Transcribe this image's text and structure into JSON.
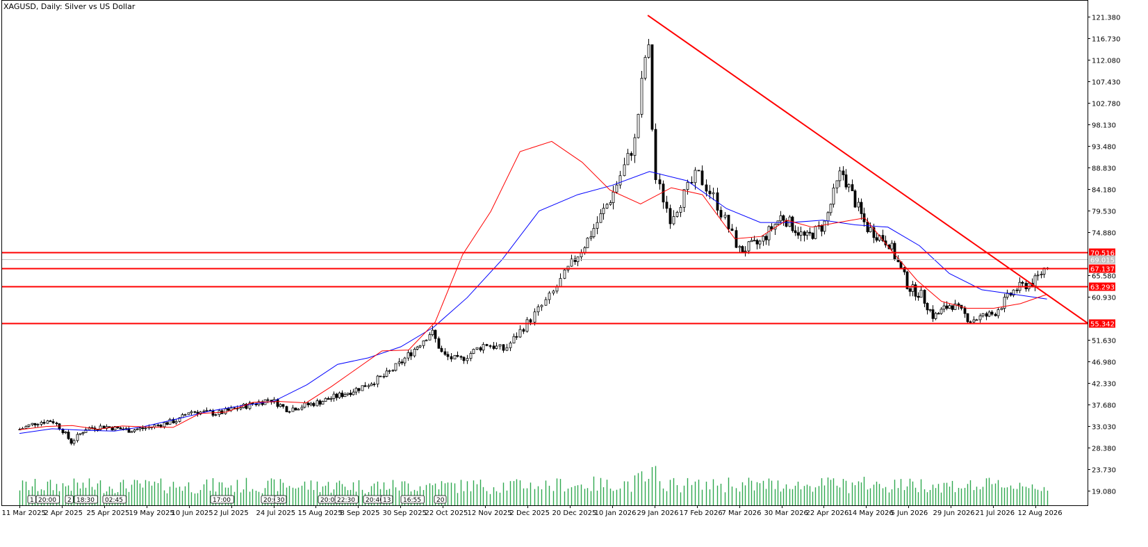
{
  "chart_data": {
    "type": "candlestick",
    "title": "XAGUSD, Daily:  Silver vs US Dollar",
    "ylim": [
      16.0,
      125.0
    ],
    "y_ticks": [
      "121.380",
      "116.730",
      "112.080",
      "107.430",
      "102.780",
      "98.130",
      "93.480",
      "88.830",
      "84.180",
      "79.530",
      "74.880",
      "65.580",
      "60.930",
      "51.630",
      "46.980",
      "42.330",
      "37.680",
      "33.030",
      "28.380",
      "23.730",
      "19.080"
    ],
    "x_ticks": [
      "11 Mar 2025",
      "2 Apr 2025",
      "25 Apr 2025",
      "19 May 2025",
      "10 Jun 2025",
      "2 Jul 2025",
      "24 Jul 2025",
      "15 Aug 2025",
      "8 Sep 2025",
      "30 Sep 2025",
      "22 Oct 2025",
      "12 Nov 2025",
      "2 Dec 2025",
      "20 Dec 2025",
      "10 Jan 2026",
      "29 Jan 2026",
      "17 Feb 2026",
      "7 Mar 2026",
      "30 Mar 2026",
      "22 Apr 2026",
      "14 May 2026",
      "5 Jun 2026",
      "29 Jun 2026",
      "21 Jul 2026",
      "12 Aug 2026"
    ],
    "price_path": [
      {
        "date": "11 Mar 2025",
        "close": 32.4
      },
      {
        "date": "20 Mar 2025",
        "close": 33.9
      },
      {
        "date": "28 Mar 2025",
        "close": 34.3
      },
      {
        "date": "2 Apr 2025",
        "close": 32.3
      },
      {
        "date": "7 Apr 2025",
        "close": 29.6
      },
      {
        "date": "15 Apr 2025",
        "close": 32.6
      },
      {
        "date": "25 Apr 2025",
        "close": 33.0
      },
      {
        "date": "9 May 2025",
        "close": 32.2
      },
      {
        "date": "19 May 2025",
        "close": 32.7
      },
      {
        "date": "5 Jun 2025",
        "close": 34.5
      },
      {
        "date": "10 Jun 2025",
        "close": 36.3
      },
      {
        "date": "25 Jun 2025",
        "close": 35.8
      },
      {
        "date": "10 Jul 2025",
        "close": 37.5
      },
      {
        "date": "22 Jul 2025",
        "close": 38.9
      },
      {
        "date": "31 Jul 2025",
        "close": 36.7
      },
      {
        "date": "15 Aug 2025",
        "close": 38.1
      },
      {
        "date": "29 Aug 2025",
        "close": 39.8
      },
      {
        "date": "8 Sep 2025",
        "close": 41.2
      },
      {
        "date": "22 Sep 2025",
        "close": 44.0
      },
      {
        "date": "30 Sep 2025",
        "close": 46.7
      },
      {
        "date": "16 Oct 2025",
        "close": 53.6
      },
      {
        "date": "22 Oct 2025",
        "close": 48.3
      },
      {
        "date": "30 Oct 2025",
        "close": 47.2
      },
      {
        "date": "12 Nov 2025",
        "close": 50.9
      },
      {
        "date": "21 Nov 2025",
        "close": 49.5
      },
      {
        "date": "2 Dec 2025",
        "close": 55.5
      },
      {
        "date": "12 Dec 2025",
        "close": 61.3
      },
      {
        "date": "20 Dec 2025",
        "close": 67.5
      },
      {
        "date": "29 Dec 2025",
        "close": 73.5
      },
      {
        "date": "10 Jan 2026",
        "close": 83.0
      },
      {
        "date": "20 Jan 2026",
        "close": 94.5
      },
      {
        "date": "26 Jan 2026",
        "close": 117.5
      },
      {
        "date": "29 Jan 2026",
        "close": 87.0
      },
      {
        "date": "5 Feb 2026",
        "close": 78.0
      },
      {
        "date": "17 Feb 2026",
        "close": 87.5
      },
      {
        "date": "24 Feb 2026",
        "close": 82.5
      },
      {
        "date": "7 Mar 2026",
        "close": 71.0
      },
      {
        "date": "18 Mar 2026",
        "close": 72.5
      },
      {
        "date": "30 Mar 2026",
        "close": 78.5
      },
      {
        "date": "12 Apr 2026",
        "close": 73.5
      },
      {
        "date": "22 Apr 2026",
        "close": 76.5
      },
      {
        "date": "1 May 2026",
        "close": 88.2
      },
      {
        "date": "14 May 2026",
        "close": 76.0
      },
      {
        "date": "26 May 2026",
        "close": 72.5
      },
      {
        "date": "5 Jun 2026",
        "close": 63.0
      },
      {
        "date": "12 Jun 2026",
        "close": 61.5
      },
      {
        "date": "19 Jun 2026",
        "close": 56.6
      },
      {
        "date": "29 Jun 2026",
        "close": 59.5
      },
      {
        "date": "9 Jul 2026",
        "close": 56.0
      },
      {
        "date": "21 Jul 2026",
        "close": 57.3
      },
      {
        "date": "1 Aug 2026",
        "close": 62.5
      },
      {
        "date": "12 Aug 2026",
        "close": 64.5
      },
      {
        "date": "18 Aug 2026",
        "close": 68.0
      }
    ],
    "ma_red": [
      32.3,
      33.0,
      33.2,
      32.4,
      33.1,
      32.9,
      32.8,
      35.8,
      36.1,
      38.2,
      38.4,
      38.1,
      41.6,
      45.3,
      49.3,
      49.5,
      55.5,
      70.1,
      79.4,
      92.3,
      94.5,
      90.0,
      84.0,
      81.0,
      84.5,
      83.0,
      73.5,
      74.0,
      77.5,
      76.0,
      77.0,
      78.0,
      71.0,
      64.5,
      60.0,
      58.5,
      58.5,
      59.5,
      61.5
    ],
    "ma_blue": [
      31.5,
      32.5,
      32.2,
      32.0,
      33.0,
      34.6,
      36.3,
      37.5,
      38.5,
      42.0,
      46.4,
      47.8,
      50.2,
      54.4,
      60.8,
      69.0,
      79.5,
      83.0,
      85.0,
      88.0,
      86.0,
      80.0,
      77.0,
      77.0,
      77.5,
      76.5,
      76.0,
      72.0,
      66.0,
      62.5,
      61.5,
      60.5
    ],
    "horizontal_levels": [
      "70.516",
      "67.137",
      "63.293",
      "55.342"
    ],
    "current_price": "69.015",
    "trendline": {
      "from_date": "26 Jan 2026",
      "from_price": 121.7,
      "to_date": "end",
      "to_price": 55.3
    },
    "volume": "green histogram along bottom of chart",
    "event_markers": [
      "1",
      "20:00",
      "2",
      "18:30",
      "02:45",
      "17:00",
      "20:00",
      "30",
      "20:00",
      "22:30",
      "20:40",
      "13",
      "16:55",
      "20"
    ],
    "colors": {
      "line_color": "#ff0000",
      "ma_red": "#ff0000",
      "ma_blue": "#0000ff",
      "candles": "#000000",
      "volume": "#2fa84f",
      "current": "#c0c0c0"
    }
  }
}
